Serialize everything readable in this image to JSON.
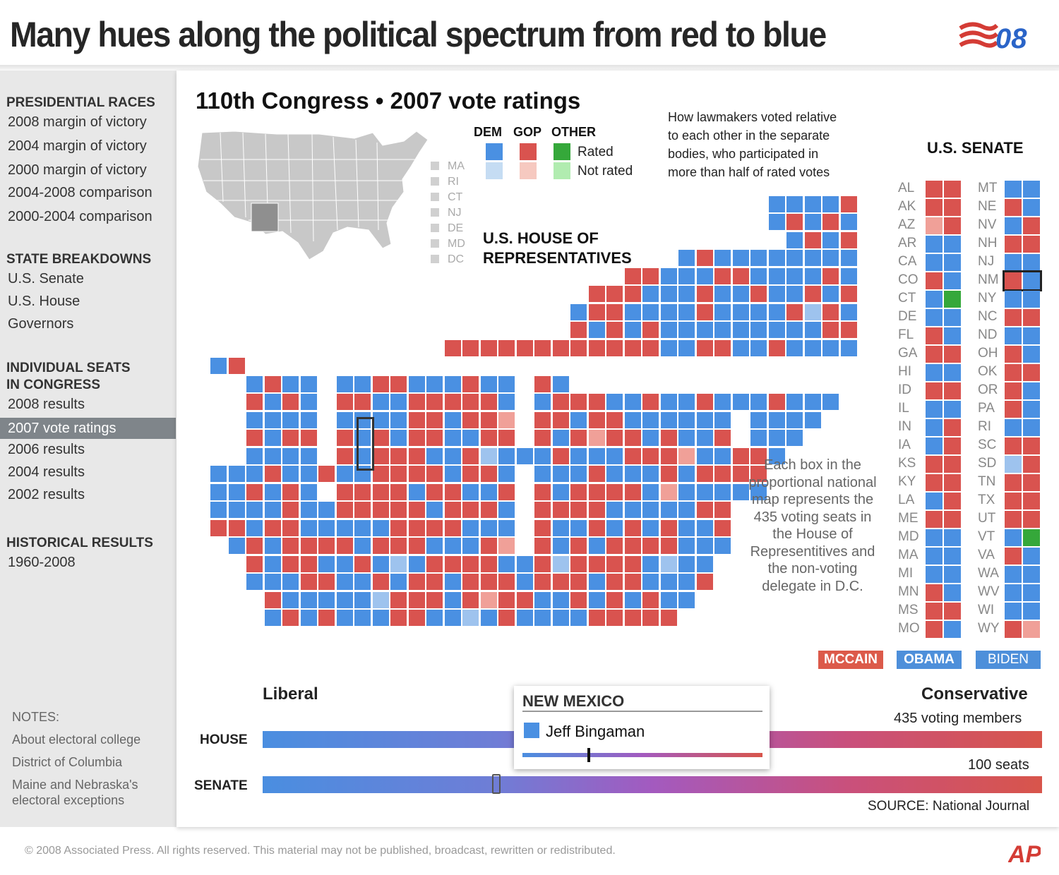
{
  "headline": "Many hues along the political spectrum from red to blue",
  "logo_text": "E08",
  "sidebar": {
    "sections": [
      {
        "title": "PRESIDENTIAL RACES",
        "items": [
          "2008 margin of victory",
          "2004 margin of victory",
          "2000 margin of victory",
          "2004-2008 comparison",
          "2000-2004 comparison"
        ]
      },
      {
        "title": "STATE BREAKDOWNS",
        "items": [
          "U.S. Senate",
          "U.S. House",
          "Governors"
        ]
      },
      {
        "title_lines": [
          "INDIVIDUAL SEATS",
          "IN CONGRESS"
        ],
        "items": [
          "2008 results",
          "2007 vote ratings",
          "2006 results",
          "2004 results",
          "2002 results"
        ],
        "active": "2007 vote ratings"
      },
      {
        "title": "HISTORICAL RESULTS",
        "items": [
          "1960-2008"
        ]
      }
    ],
    "notes_title": "NOTES:",
    "notes": [
      "About electoral college",
      "District of Columbia",
      "Maine and Nebraska's",
      "electoral exceptions"
    ]
  },
  "content_title": "110th Congress • 2007 vote ratings",
  "legend": {
    "headers": [
      "DEM",
      "GOP",
      "OTHER"
    ],
    "rated": "Rated",
    "not_rated": "Not rated"
  },
  "small_states": [
    "MA",
    "RI",
    "CT",
    "NJ",
    "DE",
    "MD",
    "DC"
  ],
  "explanation": [
    "How lawmakers voted relative",
    "to each other in the separate",
    "bodies, who participated in",
    "more than half of rated votes"
  ],
  "house_title": [
    "U.S. HOUSE OF",
    "REPRESENTATIVES"
  ],
  "box_note": [
    "Each box in the",
    "proportional national",
    "map represents the",
    "435 voting seats in",
    "the House of",
    "Representitives and",
    "the non-voting",
    "delegate in D.C."
  ],
  "senate": {
    "title": "U.S. SENATE",
    "left_states": [
      "AL",
      "AK",
      "AZ",
      "AR",
      "CA",
      "CO",
      "CT",
      "DE",
      "FL",
      "GA",
      "HI",
      "ID",
      "IL",
      "IN",
      "IA",
      "KS",
      "KY",
      "LA",
      "ME",
      "MD",
      "MA",
      "MI",
      "MN",
      "MS",
      "MO"
    ],
    "right_states": [
      "MT",
      "NE",
      "NV",
      "NH",
      "NJ",
      "NM",
      "NY",
      "NC",
      "ND",
      "OH",
      "OK",
      "OR",
      "PA",
      "RI",
      "SC",
      "SD",
      "TN",
      "TX",
      "UT",
      "VT",
      "VA",
      "WA",
      "WV",
      "WI",
      "WY"
    ],
    "left_pairs": [
      [
        "R",
        "R"
      ],
      [
        "R",
        "R"
      ],
      [
        "r",
        "R"
      ],
      [
        "D",
        "D"
      ],
      [
        "D",
        "D"
      ],
      [
        "R",
        "D"
      ],
      [
        "D",
        "O"
      ],
      [
        "D",
        "D"
      ],
      [
        "R",
        "D"
      ],
      [
        "R",
        "R"
      ],
      [
        "D",
        "D"
      ],
      [
        "R",
        "R"
      ],
      [
        "D",
        "D"
      ],
      [
        "D",
        "R"
      ],
      [
        "D",
        "R"
      ],
      [
        "R",
        "R"
      ],
      [
        "R",
        "R"
      ],
      [
        "D",
        "R"
      ],
      [
        "R",
        "R"
      ],
      [
        "D",
        "D"
      ],
      [
        "D",
        "D"
      ],
      [
        "D",
        "D"
      ],
      [
        "R",
        "D"
      ],
      [
        "R",
        "R"
      ],
      [
        "R",
        "D"
      ]
    ],
    "right_pairs": [
      [
        "D",
        "D"
      ],
      [
        "R",
        "D"
      ],
      [
        "D",
        "R"
      ],
      [
        "R",
        "R"
      ],
      [
        "D",
        "D"
      ],
      [
        "R",
        "D"
      ],
      [
        "D",
        "D"
      ],
      [
        "R",
        "R"
      ],
      [
        "D",
        "D"
      ],
      [
        "R",
        "D"
      ],
      [
        "R",
        "R"
      ],
      [
        "R",
        "D"
      ],
      [
        "R",
        "D"
      ],
      [
        "D",
        "D"
      ],
      [
        "R",
        "R"
      ],
      [
        "d",
        "R"
      ],
      [
        "R",
        "R"
      ],
      [
        "R",
        "R"
      ],
      [
        "R",
        "R"
      ],
      [
        "D",
        "O"
      ],
      [
        "R",
        "D"
      ],
      [
        "D",
        "D"
      ],
      [
        "D",
        "D"
      ],
      [
        "D",
        "D"
      ],
      [
        "R",
        "r"
      ]
    ],
    "highlight": "NM"
  },
  "candidates": [
    "MCCAIN",
    "OBAMA",
    "BIDEN"
  ],
  "spectrum": {
    "liberal": "Liberal",
    "conservative": "Conservative",
    "house_label": "HOUSE",
    "senate_label": "SENATE",
    "house_count": "435 voting members",
    "senate_count": "100 seats",
    "source": "SOURCE: National Journal"
  },
  "popup": {
    "state": "NEW MEXICO",
    "member": "Jeff Bingaman",
    "member_party": "DEM",
    "member_position": 0.27,
    "senate_marker_position": 0.3
  },
  "colors": {
    "dem": "#4a90e2",
    "gop": "#d9534f",
    "other": "#35a83a",
    "dem_not_rated": "#c5dcf3",
    "gop_not_rated": "#f6c9c0",
    "other_not_rated": "#b1ecb0",
    "dem_light": "#9ec3ee",
    "gop_light": "#f0a098",
    "mccain_tag": "#dc5a4a",
    "obama_tag": "#4d8fda",
    "biden_tag": "#4d8fda"
  },
  "footer": "© 2008 Associated Press. All rights reserved. This material may not be published, broadcast, rewritten or redistributed.",
  "ap_logo": "AP"
}
